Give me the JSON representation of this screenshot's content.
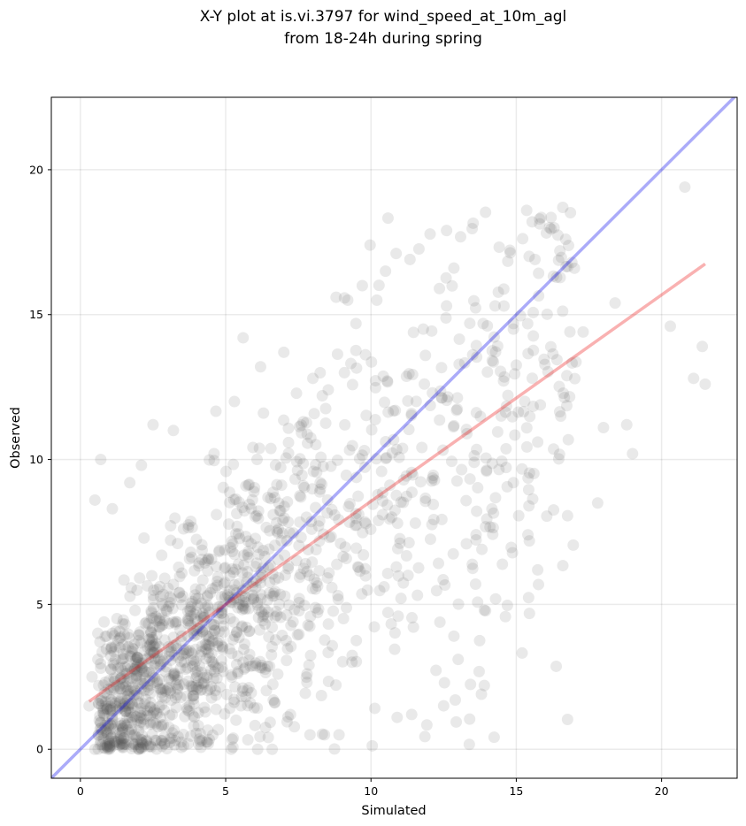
{
  "chart_data": {
    "type": "scatter",
    "title_line1": "X-Y plot at is.vi.3797 for wind_speed_at_10m_agl",
    "title_line2": "from 18-24h during spring",
    "xlabel": "Simulated",
    "ylabel": "Observed",
    "xlim": [
      -1,
      22.6
    ],
    "ylim": [
      -1,
      22.5
    ],
    "xticks": [
      0,
      5,
      10,
      15,
      20
    ],
    "yticks": [
      0,
      5,
      10,
      15,
      20
    ],
    "grid": true,
    "point_color": "#555555",
    "point_opacity": 0.13,
    "identity_line": {
      "color": "#0000ee",
      "x": [
        -1,
        22.6
      ],
      "y": [
        -1,
        22.6
      ]
    },
    "fit_line": {
      "color": "#ee1111",
      "x": [
        0.3,
        21.5
      ],
      "y": [
        1.65,
        16.75
      ]
    },
    "points_sample": [
      [
        20.8,
        19.4
      ],
      [
        21.4,
        13.9
      ],
      [
        21.5,
        12.6
      ],
      [
        21.1,
        12.8
      ],
      [
        20.3,
        14.6
      ],
      [
        19.0,
        10.2
      ],
      [
        18.8,
        11.2
      ],
      [
        18.4,
        15.4
      ],
      [
        18.0,
        11.1
      ],
      [
        17.8,
        8.5
      ],
      [
        17.3,
        14.4
      ],
      [
        17.0,
        16.6
      ],
      [
        16.6,
        18.7
      ],
      [
        16.7,
        17.6
      ],
      [
        16.3,
        18.0
      ],
      [
        15.8,
        18.3
      ],
      [
        16.5,
        17.2
      ],
      [
        14.9,
        14.5
      ],
      [
        12.6,
        15.3
      ],
      [
        13.4,
        14.7
      ],
      [
        11.8,
        14.5
      ],
      [
        10.5,
        16.5
      ],
      [
        10.2,
        15.5
      ],
      [
        9.7,
        16.0
      ],
      [
        8.8,
        15.6
      ],
      [
        9.2,
        15.5
      ],
      [
        5.6,
        14.2
      ],
      [
        6.2,
        13.2
      ],
      [
        7.0,
        13.7
      ],
      [
        8.0,
        12.8
      ],
      [
        14.9,
        9.2
      ],
      [
        15.4,
        7.4
      ],
      [
        13.6,
        5.7
      ],
      [
        13.9,
        4.8
      ],
      [
        13.0,
        3.1
      ],
      [
        12.9,
        1.7
      ],
      [
        13.8,
        1.9
      ],
      [
        13.9,
        2.2
      ],
      [
        11.4,
        1.2
      ],
      [
        10.9,
        1.1
      ],
      [
        12.5,
        1.5
      ],
      [
        7.9,
        0.5
      ],
      [
        8.4,
        0.5
      ],
      [
        7.8,
        2.6
      ],
      [
        8.9,
        0.5
      ],
      [
        2.5,
        11.2
      ],
      [
        3.2,
        11.0
      ],
      [
        0.7,
        10.0
      ],
      [
        1.1,
        8.3
      ],
      [
        0.5,
        8.6
      ],
      [
        2.1,
        9.8
      ],
      [
        5.3,
        12.0
      ],
      [
        6.3,
        11.6
      ],
      [
        4.6,
        10.2
      ],
      [
        1.7,
        9.2
      ],
      [
        0.5,
        0.0
      ],
      [
        1.0,
        0.1
      ],
      [
        2.0,
        0.0
      ],
      [
        6.1,
        0.0
      ],
      [
        6.6,
        0.0
      ],
      [
        0.4,
        2.5
      ],
      [
        0.3,
        1.5
      ],
      [
        0.6,
        4.0
      ],
      [
        0.7,
        2.8
      ],
      [
        1.2,
        3.1
      ]
    ]
  }
}
